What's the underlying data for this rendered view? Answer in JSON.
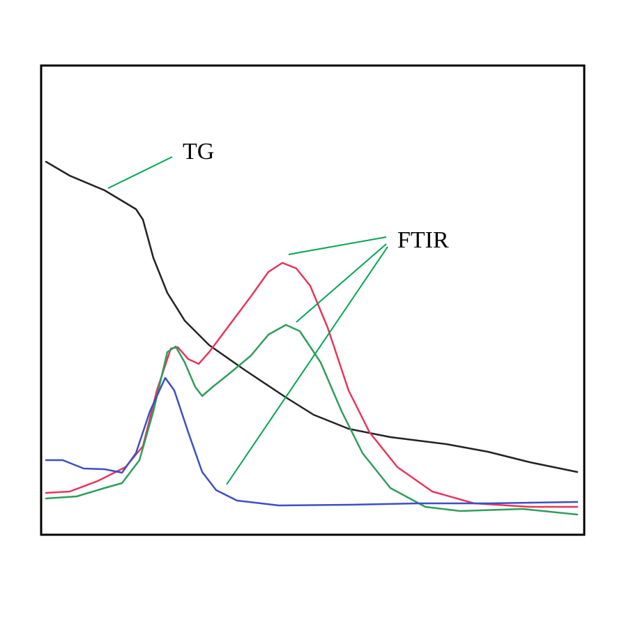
{
  "labels": {
    "tg": "TG",
    "ftir": "FTIR"
  }
}
